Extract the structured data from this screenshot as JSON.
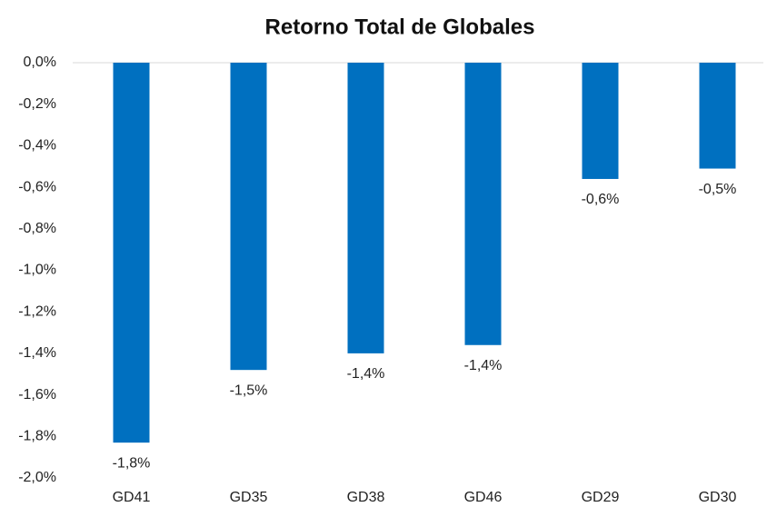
{
  "chart_data": {
    "type": "bar",
    "title": "Retorno Total de Globales",
    "categories": [
      "GD41",
      "GD35",
      "GD38",
      "GD46",
      "GD29",
      "GD30"
    ],
    "values": [
      -1.83,
      -1.48,
      -1.4,
      -1.36,
      -0.56,
      -0.51
    ],
    "value_labels": [
      "-1,8%",
      "-1,5%",
      "-1,4%",
      "-1,4%",
      "-0,6%",
      "-0,5%"
    ],
    "color": "#0070c0",
    "ylim": [
      -2.0,
      0
    ],
    "yticks": [
      {
        "value": 0,
        "label": "0,0%"
      },
      {
        "value": -0.2,
        "label": "-0,2%"
      },
      {
        "value": -0.4,
        "label": "-0,4%"
      },
      {
        "value": -0.6,
        "label": "-0,6%"
      },
      {
        "value": -0.8,
        "label": "-0,8%"
      },
      {
        "value": -1.0,
        "label": "-1,0%"
      },
      {
        "value": -1.2,
        "label": "-1,2%"
      },
      {
        "value": -1.4,
        "label": "-1,4%"
      },
      {
        "value": -1.6,
        "label": "-1,6%"
      },
      {
        "value": -1.8,
        "label": "-1,8%"
      },
      {
        "value": -2.0,
        "label": "-2,0%"
      }
    ],
    "grid": false
  }
}
